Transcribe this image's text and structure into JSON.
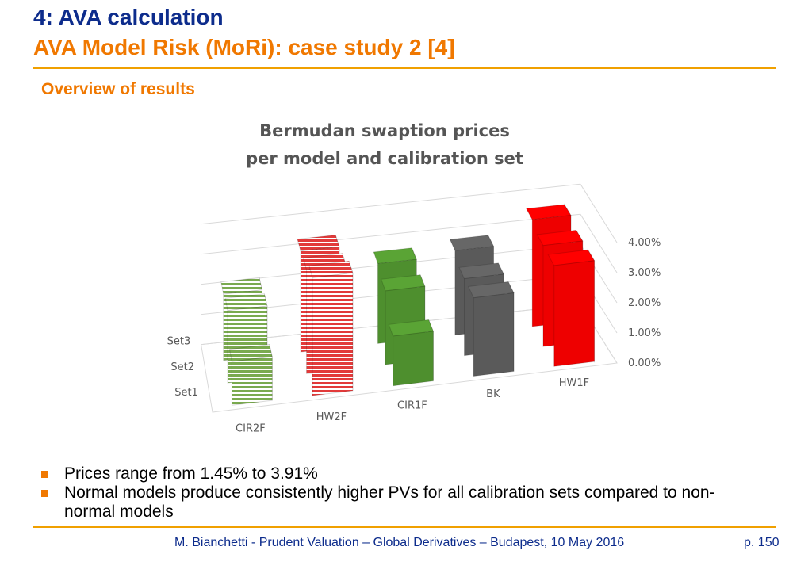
{
  "header": {
    "title": "4: AVA calculation",
    "subtitle": "AVA Model Risk (MoRi): case study 2 [4]",
    "section": "Overview of results"
  },
  "chart_data": {
    "type": "bar3d",
    "title_line1": "Bermudan swaption prices",
    "title_line2": "per model and calibration set",
    "categories": [
      "CIR2F",
      "HW2F",
      "CIR1F",
      "BK",
      "HW1F"
    ],
    "series": [
      {
        "name": "Set1",
        "values": [
          1.45,
          3.91,
          1.65,
          2.6,
          3.35
        ]
      },
      {
        "name": "Set2",
        "values": [
          2.4,
          3.45,
          2.45,
          2.55,
          3.35
        ]
      },
      {
        "name": "Set3",
        "values": [
          2.2,
          3.35,
          2.65,
          2.8,
          3.55
        ]
      }
    ],
    "y_ticks": [
      "0.00%",
      "1.00%",
      "2.00%",
      "3.00%",
      "4.00%"
    ],
    "ylim": [
      0,
      4
    ],
    "colors": {
      "CIR2F": "#7aaa4f",
      "HW2F": "#e23a3a",
      "CIR1F": "#4e8f2e",
      "BK": "#5a5a5a",
      "HW1F": "#ee0000"
    },
    "patterned": [
      "CIR2F",
      "HW2F"
    ],
    "grid": true
  },
  "bullets": [
    "Prices range from 1.45% to 3.91%",
    "Normal models produce consistently higher PVs for all calibration sets compared to non-normal models"
  ],
  "footer": {
    "text": "M. Bianchetti - Prudent Valuation – Global Derivatives – Budapest, 10 May 2016",
    "page": "p. 150"
  }
}
